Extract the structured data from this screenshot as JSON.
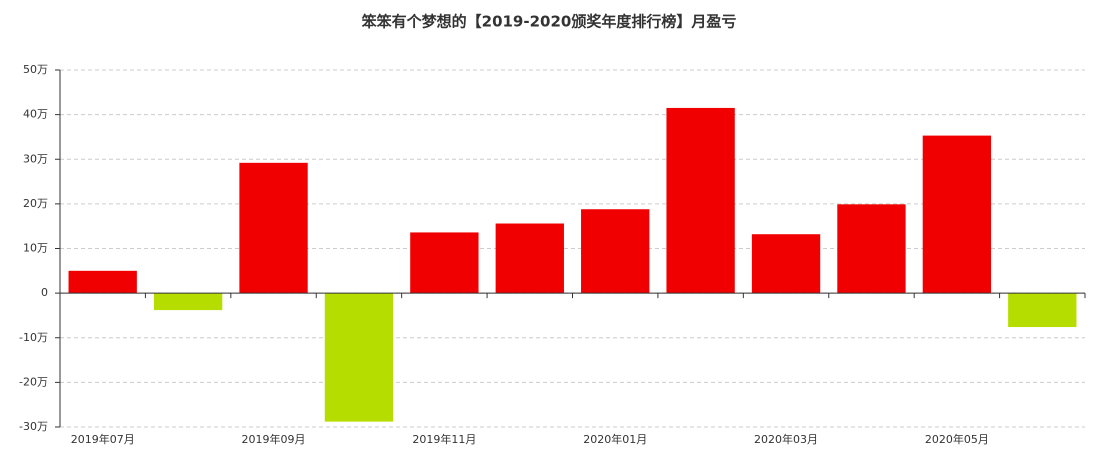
{
  "chart_data": {
    "type": "bar",
    "title": "笨笨有个梦想的【2019-2020颁奖年度排行榜】月盈亏",
    "categories": [
      "2019年07月",
      null,
      "2019年09月",
      null,
      "2019年11月",
      null,
      "2020年01月",
      null,
      "2020年03月",
      null,
      "2020年05月",
      null
    ],
    "values": [
      5,
      -3.8,
      29.2,
      -28.8,
      13.6,
      15.6,
      18.8,
      41.5,
      13.2,
      19.9,
      35.3,
      -7.6
    ],
    "positive_color": "#f00000",
    "negative_color": "#b5de00",
    "ylim": [
      -30,
      50
    ],
    "yticks": [
      {
        "value": -30,
        "label": "-30万"
      },
      {
        "value": -20,
        "label": "-20万"
      },
      {
        "value": -10,
        "label": "-10万"
      },
      0,
      {
        "value": 10,
        "label": "10万"
      },
      {
        "value": 20,
        "label": "20万"
      },
      {
        "value": 30,
        "label": "30万"
      },
      {
        "value": 40,
        "label": "40万"
      },
      {
        "value": 50,
        "label": "50万"
      }
    ],
    "grid": true
  }
}
